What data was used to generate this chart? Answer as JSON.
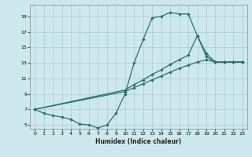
{
  "xlabel": "Humidex (Indice chaleur)",
  "bg_color": "#cce8ec",
  "grid_color": "#aacccc",
  "line_color": "#2a6e6a",
  "xlim": [
    -0.5,
    23.5
  ],
  "ylim": [
    4.5,
    20.5
  ],
  "xticks": [
    0,
    1,
    2,
    3,
    4,
    5,
    6,
    7,
    8,
    9,
    10,
    11,
    12,
    13,
    14,
    15,
    16,
    17,
    18,
    19,
    20,
    21,
    22,
    23
  ],
  "yticks": [
    5,
    7,
    9,
    11,
    13,
    15,
    17,
    19
  ],
  "line1_x": [
    0,
    1,
    2,
    3,
    4,
    5,
    6,
    7,
    8,
    9,
    10,
    11,
    12,
    13,
    14,
    15,
    16,
    17,
    18,
    19,
    20,
    21,
    22,
    23
  ],
  "line1_y": [
    7.0,
    6.5,
    6.2,
    6.0,
    5.7,
    5.1,
    5.0,
    4.6,
    5.0,
    6.5,
    9.0,
    13.0,
    16.0,
    18.8,
    19.0,
    19.5,
    19.3,
    19.3,
    16.5,
    13.8,
    13.1,
    13.1,
    13.1,
    13.1
  ],
  "line2_x": [
    0,
    10,
    11,
    12,
    13,
    14,
    15,
    16,
    17,
    18,
    19,
    20,
    21,
    22,
    23
  ],
  "line2_y": [
    7.0,
    9.3,
    9.8,
    10.3,
    10.8,
    11.3,
    11.8,
    12.3,
    12.7,
    13.1,
    13.4,
    13.1,
    13.1,
    13.1,
    13.1
  ],
  "line3_x": [
    0,
    10,
    11,
    12,
    13,
    14,
    15,
    16,
    17,
    18,
    19,
    20,
    21,
    22,
    23
  ],
  "line3_y": [
    7.0,
    9.5,
    10.2,
    10.8,
    11.5,
    12.1,
    12.8,
    13.4,
    14.0,
    16.5,
    14.2,
    13.1,
    13.1,
    13.1,
    13.1
  ]
}
